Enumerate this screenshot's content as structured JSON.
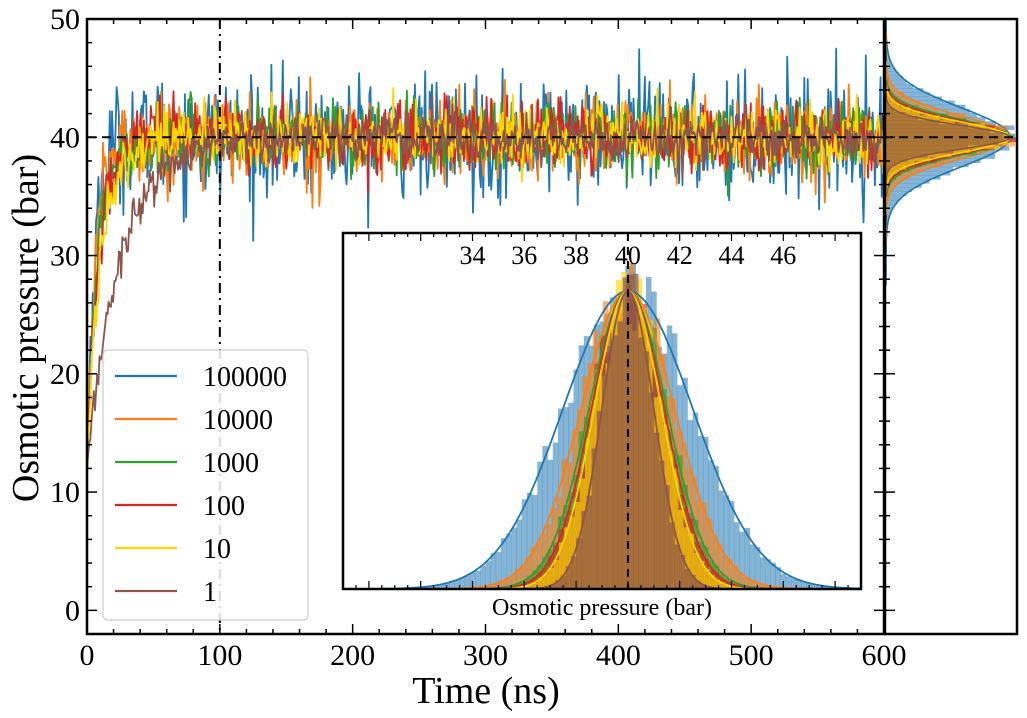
{
  "chart_data": [
    {
      "id": "main",
      "type": "line",
      "title": "",
      "xlabel": "Time (ns)",
      "ylabel": "Osmotic pressure (bar)",
      "xlim": [
        0,
        600
      ],
      "ylim": [
        -2,
        50
      ],
      "xticks": [
        0,
        100,
        200,
        300,
        400,
        500,
        600
      ],
      "yticks": [
        0,
        10,
        20,
        30,
        40,
        50
      ],
      "reference_lines": {
        "horizontal_y": 40,
        "vertical_x": 100
      },
      "legend": {
        "placement": "lower-left",
        "entries": [
          {
            "label": "100000",
            "color": "#1f77b4"
          },
          {
            "label": "10000",
            "color": "#ff7f0e"
          },
          {
            "label": "1000",
            "color": "#2ca02c"
          },
          {
            "label": "100",
            "color": "#d62728"
          },
          {
            "label": "10",
            "color": "#ffd700"
          },
          {
            "label": "1",
            "color": "#8c564b"
          }
        ]
      },
      "series": [
        {
          "name": "100000",
          "color": "#1f77b4",
          "plateau": 40,
          "fluctuation_sd": 2.5,
          "equilibration_ns": 6,
          "start_value": 12
        },
        {
          "name": "10000",
          "color": "#ff7f0e",
          "plateau": 40,
          "fluctuation_sd": 1.8,
          "equilibration_ns": 7,
          "start_value": 12
        },
        {
          "name": "1000",
          "color": "#2ca02c",
          "plateau": 40,
          "fluctuation_sd": 1.5,
          "equilibration_ns": 8,
          "start_value": 12
        },
        {
          "name": "100",
          "color": "#d62728",
          "plateau": 40,
          "fluctuation_sd": 1.4,
          "equilibration_ns": 9,
          "start_value": 12
        },
        {
          "name": "10",
          "color": "#ffd700",
          "plateau": 40,
          "fluctuation_sd": 1.3,
          "equilibration_ns": 10,
          "start_value": 12
        },
        {
          "name": "1",
          "color": "#8c564b",
          "plateau": 40,
          "fluctuation_sd": 1.0,
          "equilibration_ns": 25,
          "start_value": 12
        }
      ]
    },
    {
      "id": "inset",
      "type": "histogram",
      "xlabel": "Osmotic pressure (bar)",
      "xlim": [
        29,
        49
      ],
      "xticks": [
        34,
        36,
        38,
        40,
        42,
        44,
        46
      ],
      "reference_line_x": 40,
      "distributions": [
        {
          "name": "100000",
          "color": "#1f77b4",
          "mean": 40,
          "sd": 2.5
        },
        {
          "name": "10000",
          "color": "#ff7f0e",
          "mean": 40,
          "sd": 1.8
        },
        {
          "name": "1000",
          "color": "#2ca02c",
          "mean": 40,
          "sd": 1.5
        },
        {
          "name": "100",
          "color": "#d62728",
          "mean": 40,
          "sd": 1.4
        },
        {
          "name": "10",
          "color": "#ffd700",
          "mean": 40,
          "sd": 1.3
        },
        {
          "name": "1",
          "color": "#8c564b",
          "mean": 40,
          "sd": 1.0
        }
      ]
    },
    {
      "id": "side",
      "type": "histogram",
      "orientation": "horizontal",
      "ylim": [
        -2,
        50
      ],
      "reference_line_y": 40
    }
  ]
}
